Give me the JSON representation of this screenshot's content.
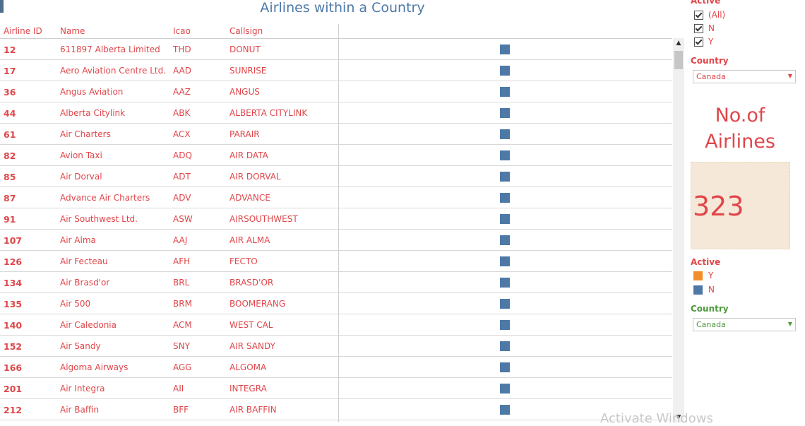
{
  "title": "Airlines within a Country",
  "table": {
    "headers": [
      "Airline ID",
      "Name",
      "Icao",
      "Callsign"
    ],
    "rows": [
      {
        "id": "12",
        "name": "611897 Alberta Limited",
        "icao": "THD",
        "callsign": "DONUT"
      },
      {
        "id": "17",
        "name": "Aero Aviation Centre Ltd.",
        "icao": "AAD",
        "callsign": "SUNRISE"
      },
      {
        "id": "36",
        "name": "Angus Aviation",
        "icao": "AAZ",
        "callsign": "ANGUS"
      },
      {
        "id": "44",
        "name": "Alberta Citylink",
        "icao": "ABK",
        "callsign": "ALBERTA CITYLINK"
      },
      {
        "id": "61",
        "name": "Air Charters",
        "icao": "ACX",
        "callsign": "PARAIR"
      },
      {
        "id": "82",
        "name": "Avion Taxi",
        "icao": "ADQ",
        "callsign": "AIR DATA"
      },
      {
        "id": "85",
        "name": "Air Dorval",
        "icao": "ADT",
        "callsign": "AIR DORVAL"
      },
      {
        "id": "87",
        "name": "Advance Air Charters",
        "icao": "ADV",
        "callsign": "ADVANCE"
      },
      {
        "id": "91",
        "name": "Air Southwest Ltd.",
        "icao": "ASW",
        "callsign": "AIRSOUTHWEST"
      },
      {
        "id": "107",
        "name": "Air Alma",
        "icao": "AAJ",
        "callsign": "AIR ALMA"
      },
      {
        "id": "126",
        "name": "Air Fecteau",
        "icao": "AFH",
        "callsign": "FECTO"
      },
      {
        "id": "134",
        "name": "Air Brasd'or",
        "icao": "BRL",
        "callsign": "BRASD'OR"
      },
      {
        "id": "135",
        "name": "Air 500",
        "icao": "BRM",
        "callsign": "BOOMERANG"
      },
      {
        "id": "140",
        "name": "Air Caledonia",
        "icao": "ACM",
        "callsign": "WEST CAL"
      },
      {
        "id": "152",
        "name": "Air Sandy",
        "icao": "SNY",
        "callsign": "AIR SANDY"
      },
      {
        "id": "166",
        "name": "Algoma Airways",
        "icao": "AGG",
        "callsign": "ALGOMA"
      },
      {
        "id": "201",
        "name": "Air Integra",
        "icao": "AII",
        "callsign": "INTEGRA"
      },
      {
        "id": "212",
        "name": "Air Baffin",
        "icao": "BFF",
        "callsign": "AIR BAFFIN"
      }
    ],
    "mark_color": "#4e79a7"
  },
  "filters": {
    "active_title": "Active",
    "active_options": [
      "(All)",
      "N",
      "Y"
    ],
    "country_title": "Country",
    "country_value": "Canada"
  },
  "kpi": {
    "label": "No.of Airlines",
    "value": "323"
  },
  "legend": {
    "title": "Active",
    "items": [
      {
        "label": "Y",
        "color": "#f28e2b"
      },
      {
        "label": "N",
        "color": "#4e79a7"
      }
    ]
  },
  "country_filter_2": {
    "title": "Country",
    "value": "Canada"
  },
  "watermark": "Activate Windows"
}
